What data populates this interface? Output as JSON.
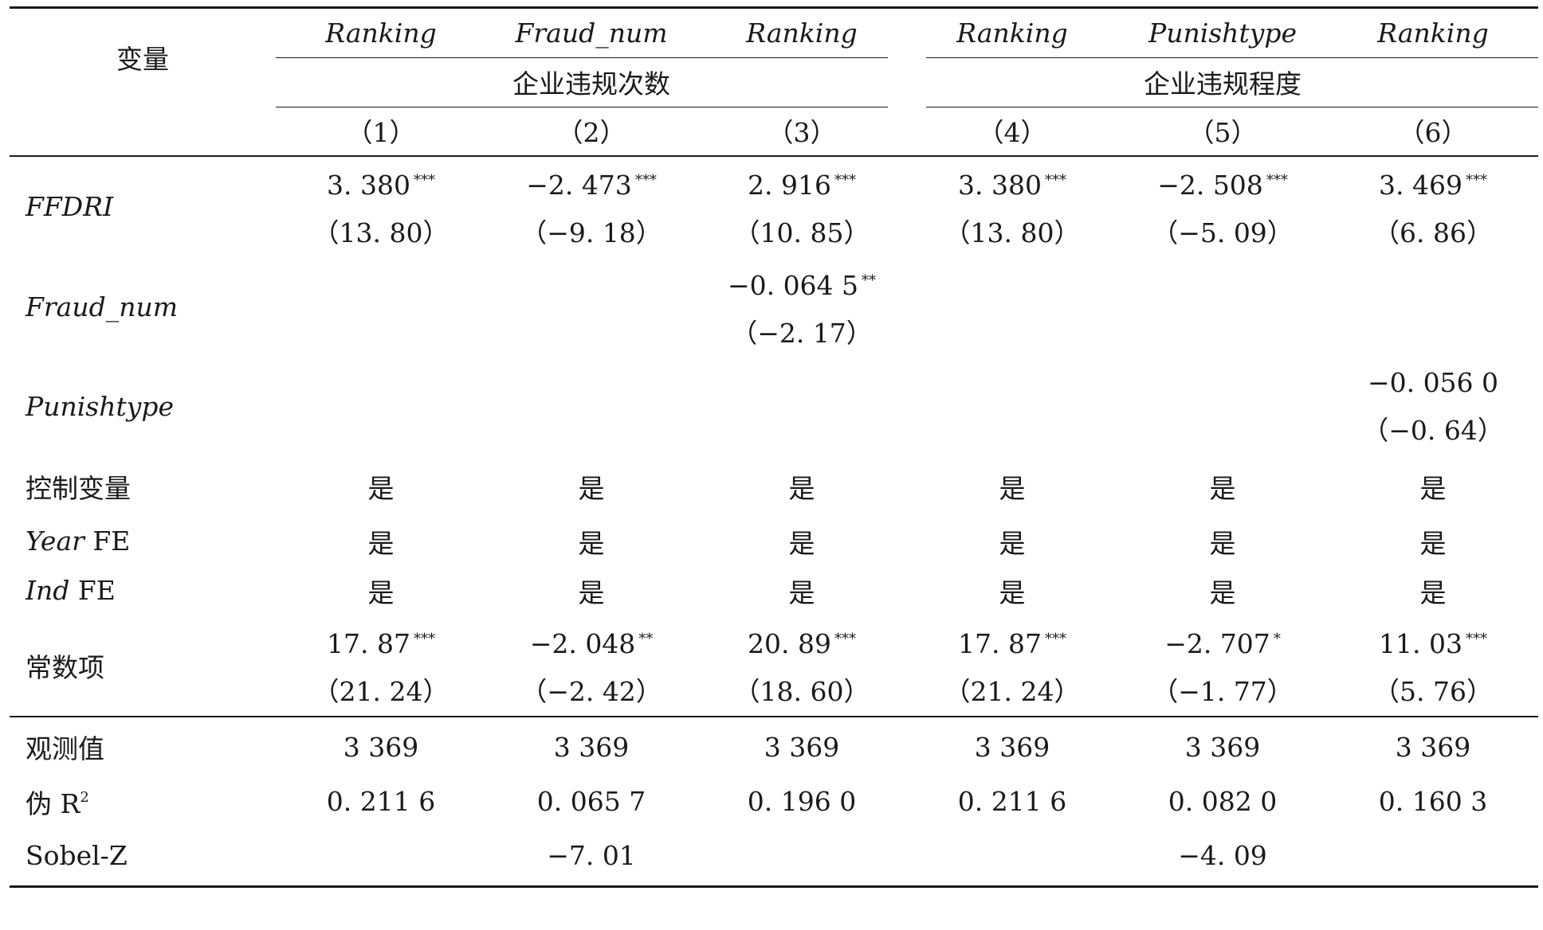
{
  "table": {
    "var_header": "变量",
    "dep_vars": [
      "Ranking",
      "Fraud_num",
      "Ranking",
      "Ranking",
      "Punishtype",
      "Ranking"
    ],
    "groups": [
      "企业违规次数",
      "企业违规程度"
    ],
    "col_numbers": [
      "（1）",
      "（2）",
      "（3）",
      "（4）",
      "（5）",
      "（6）"
    ],
    "rows": {
      "ffdri": {
        "label": "FFDRI",
        "coef": [
          "3. 380",
          "−2. 473",
          "2. 916",
          "3. 380",
          "−2. 508",
          "3. 469"
        ],
        "stars": [
          "***",
          "***",
          "***",
          "***",
          "***",
          "***"
        ],
        "t": [
          "（13. 80）",
          "（−9. 18）",
          "（10. 85）",
          "（13. 80）",
          "（−5. 09）",
          "（6. 86）"
        ]
      },
      "fraud_num": {
        "label": "Fraud_num",
        "coef_c3": "−0. 064 5",
        "stars_c3": "**",
        "t_c3": "（−2. 17）"
      },
      "punishtype": {
        "label": "Punishtype",
        "coef_c6": "−0. 056 0",
        "t_c6": "（−0. 64）"
      },
      "controls": {
        "label": "控制变量",
        "values": [
          "是",
          "是",
          "是",
          "是",
          "是",
          "是"
        ]
      },
      "year_fe": {
        "label_it": "Year",
        "label_rest": " FE",
        "values": [
          "是",
          "是",
          "是",
          "是",
          "是",
          "是"
        ]
      },
      "ind_fe": {
        "label_it": "Ind",
        "label_rest": " FE",
        "values": [
          "是",
          "是",
          "是",
          "是",
          "是",
          "是"
        ]
      },
      "constant": {
        "label": "常数项",
        "coef": [
          "17. 87",
          "−2. 048",
          "20. 89",
          "17. 87",
          "−2. 707",
          "11. 03"
        ],
        "stars": [
          "***",
          "**",
          "***",
          "***",
          "*",
          "***"
        ],
        "t": [
          "（21. 24）",
          "（−2. 42）",
          "（18. 60）",
          "（21. 24）",
          "（−1. 77）",
          "（5. 76）"
        ]
      },
      "obs": {
        "label": "观测值",
        "values": [
          "3 369",
          "3 369",
          "3 369",
          "3 369",
          "3 369",
          "3 369"
        ]
      },
      "r2": {
        "label": "伪 R",
        "label_sup": "2",
        "values": [
          "0. 211 6",
          "0. 065 7",
          "0. 196 0",
          "0. 211 6",
          "0. 082 0",
          "0. 160 3"
        ]
      },
      "sobel": {
        "label": "Sobel-Z",
        "c2": "−7. 01",
        "c5": "−4. 09"
      }
    }
  }
}
